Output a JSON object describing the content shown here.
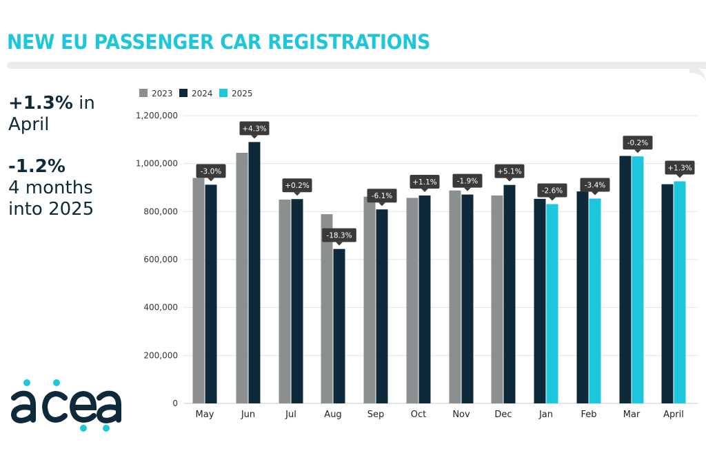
{
  "title": "NEW EU PASSENGER CAR REGISTRATIONS",
  "stats": [
    {
      "value": "+1.3%",
      "line1_suffix": " in",
      "line2": "April"
    },
    {
      "value": "-1.2%",
      "line1_suffix": "",
      "line2": "4 months",
      "line3": "into 2025"
    }
  ],
  "logo_text": "acea",
  "colors": {
    "accent": "#1cc6dc",
    "series_2023": "#8c8f8f",
    "series_2024": "#0e2a3a",
    "series_2025": "#1cc6dc",
    "bubble": "#3a3a3a"
  },
  "chart_data": {
    "type": "bar",
    "title": "NEW EU PASSENGER CAR REGISTRATIONS",
    "xlabel": "",
    "ylabel": "",
    "ylim": [
      0,
      1200000
    ],
    "yticks": [
      0,
      200000,
      400000,
      600000,
      800000,
      1000000,
      1200000
    ],
    "ytick_labels": [
      "0",
      "200,000",
      "400,000",
      "600,000",
      "800,000",
      "1,000,000",
      "1,200,000"
    ],
    "grid": true,
    "legend_position": "top-left",
    "legend": [
      "2023",
      "2024",
      "2025"
    ],
    "categories": [
      "May",
      "Jun",
      "Jul",
      "Aug",
      "Sep",
      "Oct",
      "Nov",
      "Dec",
      "Jan",
      "Feb",
      "Mar",
      "April"
    ],
    "groups": [
      {
        "category": "May",
        "bars": [
          {
            "series": "2023",
            "value": 940000
          },
          {
            "series": "2024",
            "value": 912000
          }
        ],
        "change": "-3.0%"
      },
      {
        "category": "Jun",
        "bars": [
          {
            "series": "2023",
            "value": 1045000
          },
          {
            "series": "2024",
            "value": 1090000
          }
        ],
        "change": "+4.3%"
      },
      {
        "category": "Jul",
        "bars": [
          {
            "series": "2023",
            "value": 850000
          },
          {
            "series": "2024",
            "value": 852000
          }
        ],
        "change": "+0.2%"
      },
      {
        "category": "Aug",
        "bars": [
          {
            "series": "2023",
            "value": 789000
          },
          {
            "series": "2024",
            "value": 644000
          }
        ],
        "change": "-18.3%"
      },
      {
        "category": "Sep",
        "bars": [
          {
            "series": "2023",
            "value": 862000
          },
          {
            "series": "2024",
            "value": 809000
          }
        ],
        "change": "-6.1%"
      },
      {
        "category": "Oct",
        "bars": [
          {
            "series": "2023",
            "value": 857000
          },
          {
            "series": "2024",
            "value": 867000
          }
        ],
        "change": "+1.1%"
      },
      {
        "category": "Nov",
        "bars": [
          {
            "series": "2023",
            "value": 888000
          },
          {
            "series": "2024",
            "value": 871000
          }
        ],
        "change": "-1.9%"
      },
      {
        "category": "Dec",
        "bars": [
          {
            "series": "2023",
            "value": 867000
          },
          {
            "series": "2024",
            "value": 911000
          }
        ],
        "change": "+5.1%"
      },
      {
        "category": "Jan",
        "bars": [
          {
            "series": "2024",
            "value": 853000
          },
          {
            "series": "2025",
            "value": 831000
          }
        ],
        "change": "-2.6%"
      },
      {
        "category": "Feb",
        "bars": [
          {
            "series": "2024",
            "value": 884000
          },
          {
            "series": "2025",
            "value": 854000
          }
        ],
        "change": "-3.4%"
      },
      {
        "category": "Mar",
        "bars": [
          {
            "series": "2024",
            "value": 1032000
          },
          {
            "series": "2025",
            "value": 1030000
          }
        ],
        "change": "-0.2%"
      },
      {
        "category": "April",
        "bars": [
          {
            "series": "2024",
            "value": 914000
          },
          {
            "series": "2025",
            "value": 926000
          }
        ],
        "change": "+1.3%"
      }
    ]
  }
}
